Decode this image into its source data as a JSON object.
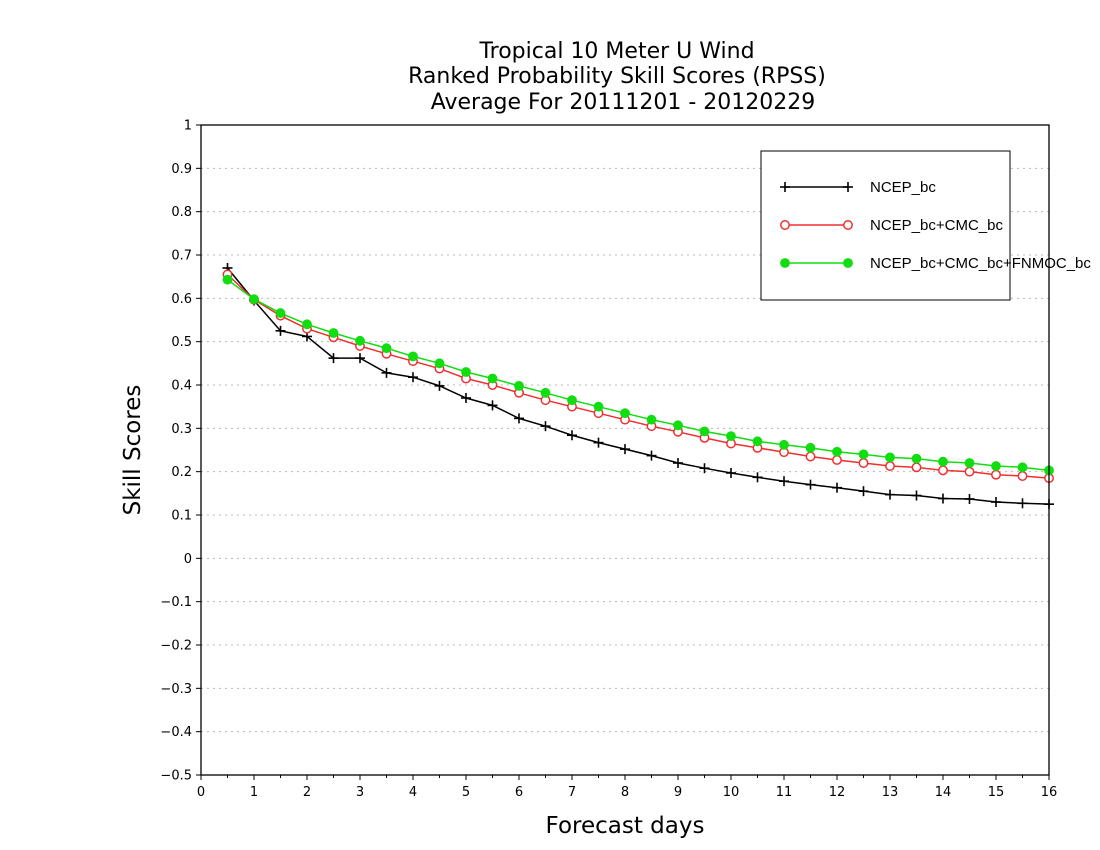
{
  "chart_data": {
    "type": "line",
    "title": [
      "Tropical 10 Meter U Wind",
      "Ranked Probability Skill Scores (RPSS)",
      "Average For 20111201 - 20120229"
    ],
    "xlabel": "Forecast days",
    "ylabel": "Skill Scores",
    "xlim": [
      0,
      16
    ],
    "ylim": [
      -0.5,
      1
    ],
    "xticks": [
      "0",
      "1",
      "2",
      "3",
      "4",
      "5",
      "6",
      "7",
      "8",
      "9",
      "10",
      "11",
      "12",
      "13",
      "14",
      "15",
      "16"
    ],
    "yticks": [
      "-0.5",
      "-0.4",
      "-0.3",
      "-0.2",
      "-0.1",
      "0",
      "0.1",
      "0.2",
      "0.3",
      "0.4",
      "0.5",
      "0.6",
      "0.7",
      "0.8",
      "0.9",
      "1"
    ],
    "grid": true,
    "legend_position": "top-right",
    "x": [
      0.5,
      1,
      1.5,
      2,
      2.5,
      3,
      3.5,
      4,
      4.5,
      5,
      5.5,
      6,
      6.5,
      7,
      7.5,
      8,
      8.5,
      9,
      9.5,
      10,
      10.5,
      11,
      11.5,
      12,
      12.5,
      13,
      13.5,
      14,
      14.5,
      15,
      15.5,
      16
    ],
    "series": [
      {
        "name": "NCEP_bc",
        "color": "#000000",
        "marker": "plus",
        "values": [
          0.67,
          0.595,
          0.525,
          0.512,
          0.462,
          0.462,
          0.428,
          0.418,
          0.398,
          0.37,
          0.353,
          0.323,
          0.305,
          0.284,
          0.267,
          0.252,
          0.237,
          0.22,
          0.208,
          0.197,
          0.187,
          0.178,
          0.17,
          0.163,
          0.155,
          0.147,
          0.145,
          0.138,
          0.137,
          0.13,
          0.127,
          0.125
        ]
      },
      {
        "name": "NCEP_bc+CMC_bc",
        "color": "#ee3030",
        "marker": "open-circle",
        "values": [
          0.655,
          0.597,
          0.56,
          0.53,
          0.51,
          0.49,
          0.472,
          0.455,
          0.438,
          0.415,
          0.4,
          0.382,
          0.365,
          0.35,
          0.335,
          0.32,
          0.305,
          0.292,
          0.278,
          0.265,
          0.255,
          0.245,
          0.235,
          0.227,
          0.22,
          0.213,
          0.21,
          0.203,
          0.2,
          0.193,
          0.19,
          0.185
        ]
      },
      {
        "name": "NCEP_bc+CMC_bc+FNMOC_bc",
        "color": "#11dd11",
        "marker": "filled-circle",
        "values": [
          0.643,
          0.598,
          0.566,
          0.54,
          0.52,
          0.502,
          0.485,
          0.466,
          0.45,
          0.43,
          0.415,
          0.398,
          0.382,
          0.365,
          0.35,
          0.335,
          0.32,
          0.307,
          0.293,
          0.282,
          0.27,
          0.262,
          0.255,
          0.246,
          0.24,
          0.233,
          0.23,
          0.223,
          0.22,
          0.213,
          0.21,
          0.203
        ]
      }
    ]
  }
}
